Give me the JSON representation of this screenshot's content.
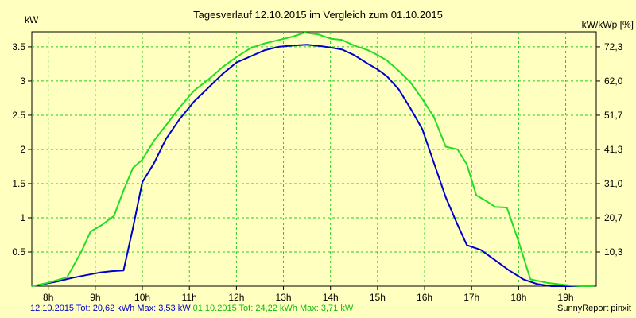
{
  "chart_data": {
    "type": "line",
    "title": "Tagesverlauf 12.10.2015 im Vergleich zum 01.10.2015",
    "ylabel_left": "kW",
    "ylabel_right": "kW/kWp [%]",
    "xlim": [
      7.65,
      19.65
    ],
    "ylim": [
      0,
      3.72
    ],
    "x_ticks": [
      8,
      9,
      10,
      11,
      12,
      13,
      14,
      15,
      16,
      17,
      18,
      19
    ],
    "x_tick_labels": [
      "8h",
      "9h",
      "10h",
      "11h",
      "12h",
      "13h",
      "14h",
      "15h",
      "16h",
      "17h",
      "18h",
      "19h"
    ],
    "y_ticks_left": [
      0.5,
      1,
      1.5,
      2,
      2.5,
      3,
      3.5
    ],
    "y_tick_labels_left": [
      "0.5",
      "1",
      "1.5",
      "2",
      "2.5",
      "3",
      "3.5"
    ],
    "y_ticks_right_kw": [
      0.5,
      1,
      1.5,
      2,
      2.5,
      3,
      3.5
    ],
    "y_tick_labels_right": [
      "10,3",
      "20,7",
      "31,0",
      "41,3",
      "51,7",
      "62,0",
      "72,3"
    ],
    "grid": true,
    "series": [
      {
        "name": "12.10.2015",
        "color": "#0000cc",
        "x": [
          7.65,
          7.9,
          8.2,
          8.5,
          8.8,
          9.1,
          9.35,
          9.6,
          9.8,
          10.0,
          10.25,
          10.5,
          10.8,
          11.1,
          11.4,
          11.7,
          12.0,
          12.3,
          12.6,
          12.9,
          13.2,
          13.5,
          13.8,
          14.0,
          14.25,
          14.5,
          14.8,
          15.0,
          15.2,
          15.45,
          15.7,
          15.95,
          16.2,
          16.45,
          16.7,
          16.9,
          17.2,
          17.5,
          17.8,
          18.1,
          18.4,
          18.7,
          19.0,
          19.3
        ],
        "y": [
          0.0,
          0.03,
          0.07,
          0.12,
          0.16,
          0.2,
          0.22,
          0.23,
          0.85,
          1.52,
          1.8,
          2.15,
          2.45,
          2.7,
          2.9,
          3.1,
          3.27,
          3.36,
          3.45,
          3.5,
          3.52,
          3.53,
          3.51,
          3.49,
          3.46,
          3.38,
          3.25,
          3.17,
          3.07,
          2.88,
          2.6,
          2.3,
          1.8,
          1.3,
          0.9,
          0.6,
          0.53,
          0.38,
          0.23,
          0.1,
          0.03,
          0.0,
          0.0,
          0.0
        ]
      },
      {
        "name": "01.10.2015",
        "color": "#22dd22",
        "x": [
          7.65,
          8.0,
          8.4,
          8.7,
          8.9,
          9.15,
          9.4,
          9.6,
          9.8,
          10.0,
          10.25,
          10.5,
          10.8,
          11.1,
          11.4,
          11.7,
          12.0,
          12.3,
          12.6,
          12.9,
          13.2,
          13.45,
          13.75,
          14.0,
          14.25,
          14.5,
          14.8,
          15.0,
          15.2,
          15.45,
          15.7,
          15.95,
          16.2,
          16.45,
          16.7,
          16.9,
          17.1,
          17.3,
          17.5,
          17.75,
          18.0,
          18.25,
          18.6,
          18.95,
          19.3,
          19.6
        ],
        "y": [
          0.0,
          0.05,
          0.13,
          0.5,
          0.8,
          0.9,
          1.03,
          1.4,
          1.73,
          1.85,
          2.13,
          2.35,
          2.62,
          2.86,
          3.02,
          3.2,
          3.35,
          3.48,
          3.55,
          3.6,
          3.65,
          3.71,
          3.68,
          3.62,
          3.6,
          3.52,
          3.45,
          3.38,
          3.3,
          3.15,
          2.98,
          2.74,
          2.47,
          2.04,
          2.0,
          1.78,
          1.33,
          1.25,
          1.16,
          1.15,
          0.65,
          0.1,
          0.05,
          0.02,
          0.0,
          0.0
        ]
      }
    ],
    "footer": {
      "series1_summary": "12.10.2015 Tot: 20,62 kWh Max: 3,53 kW",
      "series2_summary": "01.10.2015 Tot: 24,22 kWh Max: 3,71 kW",
      "credit": "SunnyReport pinxit"
    }
  }
}
